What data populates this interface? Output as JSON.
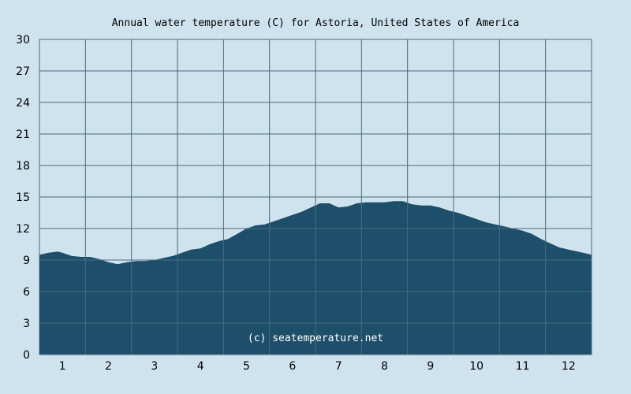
{
  "chart_data": {
    "type": "area",
    "title": "Annual water temperature (C) for Astoria, United States of America",
    "xlabel": "",
    "ylabel": "",
    "ylim": [
      0,
      30
    ],
    "xlim": [
      0.5,
      12.5
    ],
    "x_ticks": [
      "1",
      "2",
      "3",
      "4",
      "5",
      "6",
      "7",
      "8",
      "9",
      "10",
      "11",
      "12"
    ],
    "y_ticks": [
      "0",
      "3",
      "6",
      "9",
      "12",
      "15",
      "18",
      "21",
      "24",
      "27",
      "30"
    ],
    "grid": true,
    "legend": "none",
    "watermark": "(c) seatemperature.net",
    "colors": {
      "background": "#cfe3ef",
      "plot_background": "#cfe3ef",
      "area_fill": "#1e4f6a",
      "grid": "#4a6a80",
      "watermark": "#ffffff"
    },
    "series": [
      {
        "x": [
          0.5,
          0.7,
          0.9,
          1.0,
          1.2,
          1.4,
          1.6,
          1.8,
          2.0,
          2.2,
          2.4,
          2.6,
          2.8,
          3.0,
          3.2,
          3.4,
          3.6,
          3.8,
          4.0,
          4.2,
          4.4,
          4.6,
          4.8,
          5.0,
          5.2,
          5.4,
          5.6,
          5.8,
          6.0,
          6.2,
          6.4,
          6.6,
          6.8,
          7.0,
          7.2,
          7.4,
          7.6,
          7.8,
          8.0,
          8.2,
          8.4,
          8.6,
          8.8,
          9.0,
          9.2,
          9.4,
          9.6,
          9.8,
          10.0,
          10.2,
          10.4,
          10.6,
          10.8,
          11.0,
          11.2,
          11.4,
          11.6,
          11.8,
          12.0,
          12.2,
          12.5
        ],
        "values": [
          9.5,
          9.7,
          9.8,
          9.7,
          9.4,
          9.3,
          9.3,
          9.1,
          8.8,
          8.6,
          8.8,
          8.9,
          8.9,
          9.0,
          9.2,
          9.4,
          9.7,
          10.0,
          10.1,
          10.5,
          10.8,
          11.0,
          11.5,
          12.0,
          12.3,
          12.4,
          12.7,
          13.0,
          13.3,
          13.6,
          14.0,
          14.4,
          14.4,
          14.0,
          14.1,
          14.4,
          14.5,
          14.5,
          14.5,
          14.6,
          14.6,
          14.3,
          14.2,
          14.2,
          14.0,
          13.7,
          13.5,
          13.2,
          12.9,
          12.6,
          12.4,
          12.2,
          12.0,
          11.8,
          11.5,
          11.0,
          10.6,
          10.2,
          10.0,
          9.8,
          9.5
        ]
      }
    ]
  }
}
